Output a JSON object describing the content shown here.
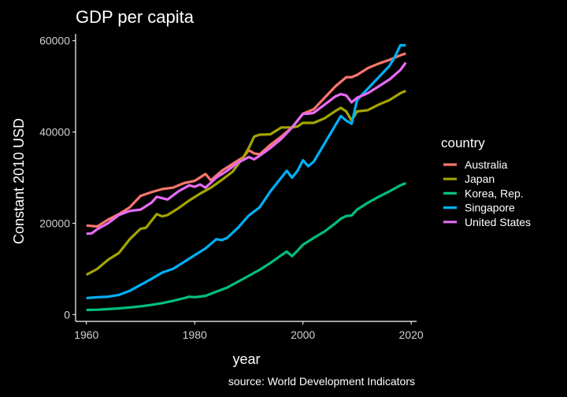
{
  "chart_data": {
    "type": "line",
    "title": "GDP per capita",
    "xlabel": "year",
    "ylabel": "Constant 2010 USD",
    "caption": "source: World Development Indicators",
    "legend_title": "country",
    "legend_position": "right",
    "grid": false,
    "xlim": [
      1958,
      2021
    ],
    "ylim": [
      -1500,
      61500
    ],
    "x_ticks": [
      1960,
      1980,
      2000,
      2020
    ],
    "y_ticks": [
      0,
      20000,
      40000,
      60000
    ],
    "series": [
      {
        "name": "Australia",
        "color": "#F8766D",
        "points": [
          [
            1960,
            19500
          ],
          [
            1962,
            19300
          ],
          [
            1964,
            20800
          ],
          [
            1966,
            22000
          ],
          [
            1968,
            23500
          ],
          [
            1970,
            26000
          ],
          [
            1972,
            26800
          ],
          [
            1974,
            27500
          ],
          [
            1976,
            27800
          ],
          [
            1978,
            28800
          ],
          [
            1980,
            29300
          ],
          [
            1982,
            30800
          ],
          [
            1983,
            29400
          ],
          [
            1985,
            31500
          ],
          [
            1987,
            33000
          ],
          [
            1989,
            34500
          ],
          [
            1990,
            36000
          ],
          [
            1991,
            35300
          ],
          [
            1992,
            35100
          ],
          [
            1994,
            37200
          ],
          [
            1996,
            39000
          ],
          [
            1998,
            41000
          ],
          [
            2000,
            44000
          ],
          [
            2002,
            45000
          ],
          [
            2004,
            47500
          ],
          [
            2006,
            50000
          ],
          [
            2008,
            52000
          ],
          [
            2009,
            52000
          ],
          [
            2010,
            52500
          ],
          [
            2012,
            54000
          ],
          [
            2014,
            55000
          ],
          [
            2016,
            55800
          ],
          [
            2018,
            56800
          ],
          [
            2019,
            57200
          ]
        ]
      },
      {
        "name": "Japan",
        "color": "#A3A500",
        "points": [
          [
            1960,
            8700
          ],
          [
            1962,
            10000
          ],
          [
            1964,
            12000
          ],
          [
            1966,
            13500
          ],
          [
            1968,
            16500
          ],
          [
            1970,
            18800
          ],
          [
            1971,
            19000
          ],
          [
            1973,
            22000
          ],
          [
            1974,
            21500
          ],
          [
            1975,
            21800
          ],
          [
            1977,
            23300
          ],
          [
            1979,
            25000
          ],
          [
            1981,
            26500
          ],
          [
            1983,
            27800
          ],
          [
            1985,
            29500
          ],
          [
            1987,
            31300
          ],
          [
            1989,
            34500
          ],
          [
            1990,
            36500
          ],
          [
            1991,
            39000
          ],
          [
            1992,
            39400
          ],
          [
            1994,
            39500
          ],
          [
            1996,
            41000
          ],
          [
            1998,
            41000
          ],
          [
            1999,
            41200
          ],
          [
            2000,
            42000
          ],
          [
            2002,
            42000
          ],
          [
            2004,
            43000
          ],
          [
            2006,
            44600
          ],
          [
            2007,
            45300
          ],
          [
            2008,
            44500
          ],
          [
            2009,
            42500
          ],
          [
            2010,
            44500
          ],
          [
            2012,
            44800
          ],
          [
            2014,
            46000
          ],
          [
            2016,
            47000
          ],
          [
            2018,
            48500
          ],
          [
            2019,
            49000
          ]
        ]
      },
      {
        "name": "Korea, Rep.",
        "color": "#00BF7D",
        "points": [
          [
            1960,
            1000
          ],
          [
            1962,
            1050
          ],
          [
            1964,
            1200
          ],
          [
            1966,
            1350
          ],
          [
            1968,
            1550
          ],
          [
            1970,
            1800
          ],
          [
            1972,
            2100
          ],
          [
            1974,
            2500
          ],
          [
            1976,
            3000
          ],
          [
            1978,
            3600
          ],
          [
            1979,
            3900
          ],
          [
            1980,
            3800
          ],
          [
            1982,
            4100
          ],
          [
            1984,
            5000
          ],
          [
            1986,
            5900
          ],
          [
            1988,
            7200
          ],
          [
            1990,
            8500
          ],
          [
            1992,
            9800
          ],
          [
            1994,
            11300
          ],
          [
            1996,
            13000
          ],
          [
            1997,
            13800
          ],
          [
            1998,
            12800
          ],
          [
            1999,
            14000
          ],
          [
            2000,
            15300
          ],
          [
            2002,
            16800
          ],
          [
            2004,
            18200
          ],
          [
            2006,
            20000
          ],
          [
            2007,
            21000
          ],
          [
            2008,
            21600
          ],
          [
            2009,
            21700
          ],
          [
            2010,
            23000
          ],
          [
            2012,
            24500
          ],
          [
            2014,
            25800
          ],
          [
            2016,
            27000
          ],
          [
            2018,
            28300
          ],
          [
            2019,
            28800
          ]
        ]
      },
      {
        "name": "Singapore",
        "color": "#00B0F6",
        "points": [
          [
            1960,
            3600
          ],
          [
            1962,
            3800
          ],
          [
            1964,
            3900
          ],
          [
            1966,
            4300
          ],
          [
            1968,
            5200
          ],
          [
            1970,
            6500
          ],
          [
            1972,
            7800
          ],
          [
            1974,
            9200
          ],
          [
            1976,
            10000
          ],
          [
            1978,
            11500
          ],
          [
            1980,
            13000
          ],
          [
            1982,
            14500
          ],
          [
            1984,
            16500
          ],
          [
            1985,
            16300
          ],
          [
            1986,
            16800
          ],
          [
            1988,
            19000
          ],
          [
            1990,
            21700
          ],
          [
            1992,
            23500
          ],
          [
            1994,
            27000
          ],
          [
            1996,
            30000
          ],
          [
            1997,
            31500
          ],
          [
            1998,
            30000
          ],
          [
            1999,
            31500
          ],
          [
            2000,
            33800
          ],
          [
            2001,
            32500
          ],
          [
            2002,
            33500
          ],
          [
            2004,
            37500
          ],
          [
            2006,
            41500
          ],
          [
            2007,
            43500
          ],
          [
            2008,
            42500
          ],
          [
            2009,
            41800
          ],
          [
            2010,
            47000
          ],
          [
            2012,
            49500
          ],
          [
            2014,
            52000
          ],
          [
            2016,
            54500
          ],
          [
            2017,
            56500
          ],
          [
            2018,
            59000
          ],
          [
            2019,
            59000
          ]
        ]
      },
      {
        "name": "United States",
        "color": "#E76BF3",
        "points": [
          [
            1960,
            17700
          ],
          [
            1961,
            17800
          ],
          [
            1962,
            18700
          ],
          [
            1964,
            20000
          ],
          [
            1966,
            21800
          ],
          [
            1968,
            22700
          ],
          [
            1970,
            23000
          ],
          [
            1972,
            24500
          ],
          [
            1973,
            25800
          ],
          [
            1974,
            25500
          ],
          [
            1975,
            25200
          ],
          [
            1977,
            27000
          ],
          [
            1979,
            28300
          ],
          [
            1980,
            28000
          ],
          [
            1981,
            28500
          ],
          [
            1982,
            27800
          ],
          [
            1984,
            30000
          ],
          [
            1986,
            31500
          ],
          [
            1988,
            33300
          ],
          [
            1990,
            34500
          ],
          [
            1991,
            34000
          ],
          [
            1992,
            34800
          ],
          [
            1994,
            36500
          ],
          [
            1996,
            38500
          ],
          [
            1998,
            41000
          ],
          [
            2000,
            44000
          ],
          [
            2001,
            44000
          ],
          [
            2002,
            44200
          ],
          [
            2004,
            46000
          ],
          [
            2006,
            47800
          ],
          [
            2007,
            48300
          ],
          [
            2008,
            48000
          ],
          [
            2009,
            46500
          ],
          [
            2010,
            47500
          ],
          [
            2012,
            48500
          ],
          [
            2014,
            50000
          ],
          [
            2016,
            51500
          ],
          [
            2018,
            53600
          ],
          [
            2019,
            55200
          ]
        ]
      }
    ]
  }
}
